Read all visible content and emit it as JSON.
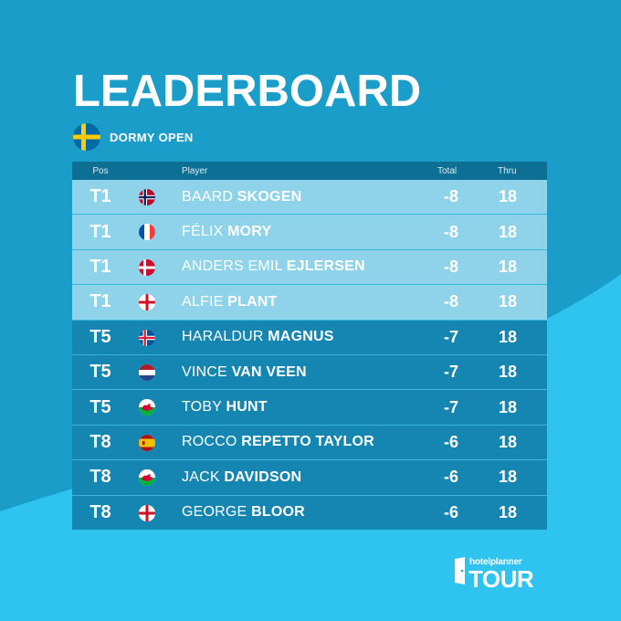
{
  "title": "LEADERBOARD",
  "event": {
    "name": "DORMY OPEN",
    "flag_icon": "sweden-flag-icon"
  },
  "columns": {
    "pos": "Pos",
    "player": "Player",
    "total": "Total",
    "thru": "Thru"
  },
  "colors": {
    "background": "#1a9ec9",
    "wave": "#2fc3f0",
    "leader_row": "#8fd3ea",
    "row": "#1486b1",
    "header": "#0d6f93"
  },
  "rows": [
    {
      "pos": "T1",
      "flag": "norway",
      "first": "BAARD",
      "last": "SKOGEN",
      "total": "-8",
      "thru": "18"
    },
    {
      "pos": "T1",
      "flag": "france",
      "first": "FÉLIX",
      "last": "MORY",
      "total": "-8",
      "thru": "18"
    },
    {
      "pos": "T1",
      "flag": "denmark",
      "first": "ANDERS EMIL",
      "last": "EJLERSEN",
      "total": "-8",
      "thru": "18"
    },
    {
      "pos": "T1",
      "flag": "england",
      "first": "ALFIE",
      "last": "PLANT",
      "total": "-8",
      "thru": "18"
    },
    {
      "pos": "T5",
      "flag": "iceland",
      "first": "HARALDUR",
      "last": "MAGNUS",
      "total": "-7",
      "thru": "18"
    },
    {
      "pos": "T5",
      "flag": "netherlands",
      "first": "VINCE",
      "last": "VAN VEEN",
      "total": "-7",
      "thru": "18"
    },
    {
      "pos": "T5",
      "flag": "wales",
      "first": "TOBY",
      "last": "HUNT",
      "total": "-7",
      "thru": "18"
    },
    {
      "pos": "T8",
      "flag": "spain",
      "first": "ROCCO",
      "last": "REPETTO TAYLOR",
      "total": "-6",
      "thru": "18"
    },
    {
      "pos": "T8",
      "flag": "wales",
      "first": "JACK",
      "last": "DAVIDSON",
      "total": "-6",
      "thru": "18"
    },
    {
      "pos": "T8",
      "flag": "england",
      "first": "GEORGE",
      "last": "BLOOR",
      "total": "-6",
      "thru": "18"
    }
  ],
  "logo": {
    "small": "hotelplanner",
    "big": "TOUR"
  }
}
